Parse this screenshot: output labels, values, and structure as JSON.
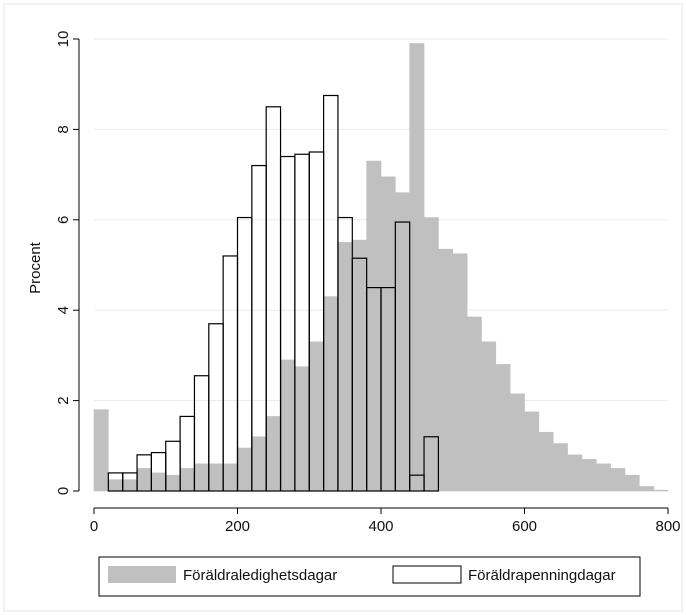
{
  "chart_data": {
    "type": "bar",
    "title": "",
    "xlabel": "",
    "ylabel": "Procent",
    "xlim": [
      0,
      800
    ],
    "ylim": [
      0,
      10
    ],
    "x_ticks": [
      0,
      200,
      400,
      600,
      800
    ],
    "y_ticks": [
      0,
      2,
      4,
      6,
      8,
      10
    ],
    "bin_width": 20,
    "grid": true,
    "legend_position": "bottom",
    "series": [
      {
        "name": "Föräldraledighetsdagar",
        "color": "#c0c0c0",
        "style": "filled",
        "bins": [
          [
            0,
            1.8
          ],
          [
            20,
            0.25
          ],
          [
            40,
            0.25
          ],
          [
            60,
            0.5
          ],
          [
            80,
            0.4
          ],
          [
            100,
            0.35
          ],
          [
            120,
            0.5
          ],
          [
            140,
            0.6
          ],
          [
            160,
            0.6
          ],
          [
            180,
            0.6
          ],
          [
            200,
            0.95
          ],
          [
            220,
            1.2
          ],
          [
            240,
            1.65
          ],
          [
            260,
            2.9
          ],
          [
            280,
            2.75
          ],
          [
            300,
            3.3
          ],
          [
            320,
            4.3
          ],
          [
            340,
            5.5
          ],
          [
            360,
            5.55
          ],
          [
            380,
            7.3
          ],
          [
            400,
            6.95
          ],
          [
            420,
            6.6
          ],
          [
            440,
            9.9
          ],
          [
            460,
            6.05
          ],
          [
            480,
            5.35
          ],
          [
            500,
            5.25
          ],
          [
            520,
            3.85
          ],
          [
            540,
            3.3
          ],
          [
            560,
            2.8
          ],
          [
            580,
            2.15
          ],
          [
            600,
            1.75
          ],
          [
            620,
            1.3
          ],
          [
            640,
            1.05
          ],
          [
            660,
            0.8
          ],
          [
            680,
            0.7
          ],
          [
            700,
            0.6
          ],
          [
            720,
            0.5
          ],
          [
            740,
            0.35
          ],
          [
            760,
            0.1
          ],
          [
            780,
            0.02
          ]
        ]
      },
      {
        "name": "Föräldrapenningdagar",
        "color": "#000000",
        "style": "outline",
        "bins": [
          [
            20,
            0.4
          ],
          [
            40,
            0.4
          ],
          [
            60,
            0.8
          ],
          [
            80,
            0.85
          ],
          [
            100,
            1.1
          ],
          [
            120,
            1.65
          ],
          [
            140,
            2.55
          ],
          [
            160,
            3.7
          ],
          [
            180,
            5.2
          ],
          [
            200,
            6.05
          ],
          [
            220,
            7.2
          ],
          [
            240,
            8.5
          ],
          [
            260,
            7.4
          ],
          [
            280,
            7.45
          ],
          [
            300,
            7.5
          ],
          [
            320,
            8.75
          ],
          [
            340,
            6.05
          ],
          [
            360,
            5.15
          ],
          [
            380,
            4.5
          ],
          [
            400,
            4.5
          ],
          [
            420,
            5.95
          ],
          [
            440,
            0.35
          ],
          [
            460,
            1.2
          ]
        ]
      }
    ]
  }
}
